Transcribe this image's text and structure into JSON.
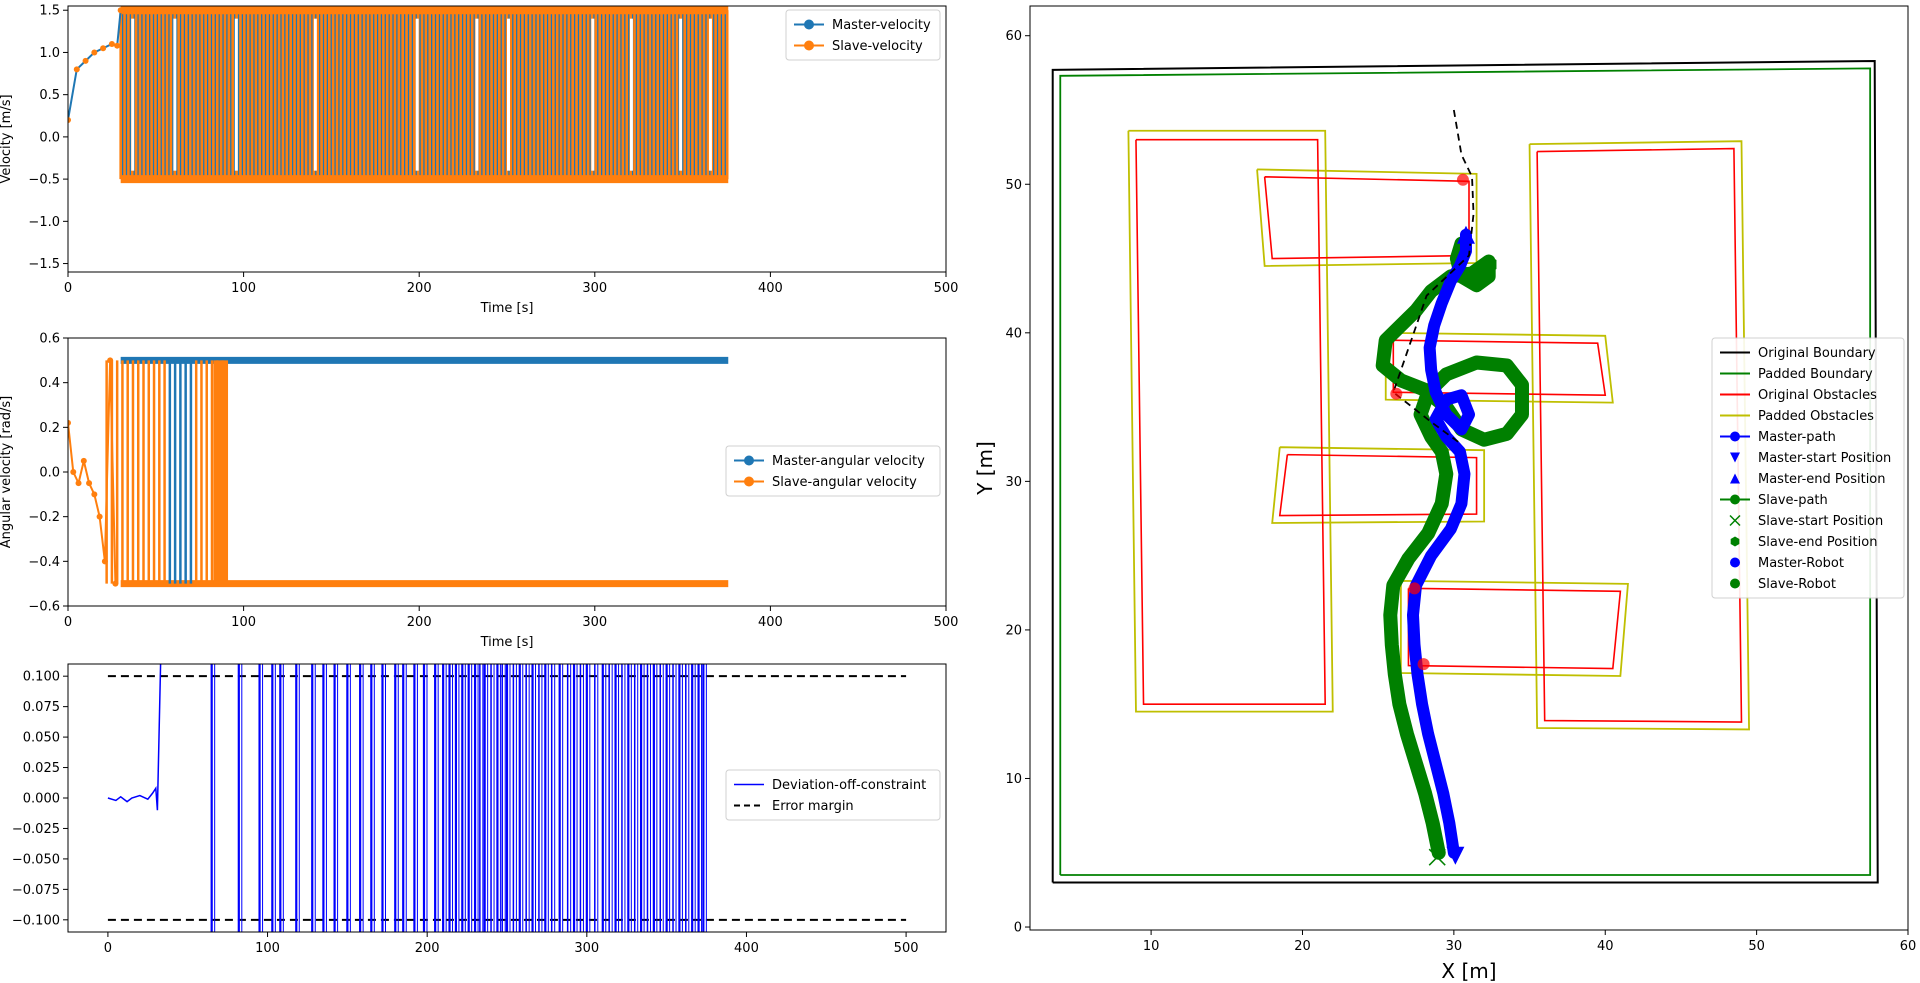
{
  "chart_data": [
    {
      "type": "line",
      "xlabel": "Time [s]",
      "ylabel": "Velocity [m/s]",
      "xlim": [
        0,
        500
      ],
      "ylim": [
        -1.6,
        1.55
      ],
      "xticks": [
        0,
        100,
        200,
        300,
        400,
        500
      ],
      "yticks": [
        -1.5,
        -1.0,
        -0.5,
        0.0,
        0.5,
        1.0,
        1.5
      ],
      "ytick_labels": [
        "−1.5",
        "−1.0",
        "−0.5",
        "0.0",
        "0.5",
        "1.0",
        "1.5"
      ],
      "legend_position": "upper right",
      "series": [
        {
          "name": "Master-velocity",
          "color": "#1f77b4",
          "marker": "o",
          "x": [
            0,
            5,
            10,
            15,
            20,
            25,
            28,
            30,
            30,
            60,
            60,
            100,
            100,
            150,
            150,
            200,
            200,
            225,
            225,
            250,
            250,
            300,
            300,
            330,
            330,
            376
          ],
          "y": [
            0.2,
            0.8,
            0.9,
            1.0,
            1.05,
            1.1,
            1.08,
            1.5,
            -0.5,
            -0.5,
            1.5,
            1.5,
            -0.5,
            -0.5,
            1.5,
            1.5,
            -0.5,
            -0.5,
            1.5,
            1.5,
            -0.5,
            -0.5,
            1.5,
            1.5,
            -0.5,
            -0.5
          ]
        },
        {
          "name": "Slave-velocity",
          "color": "#ff7f0e",
          "marker": "o",
          "x": [
            0,
            5,
            10,
            15,
            20,
            25,
            28,
            30,
            30,
            376,
            376
          ],
          "y": [
            0.3,
            0.85,
            0.9,
            1.0,
            1.05,
            1.1,
            1.08,
            1.5,
            -0.5,
            -0.5,
            1.5
          ]
        }
      ],
      "fill_band": {
        "x": [
          30,
          376
        ],
        "y": [
          -0.5,
          1.5
        ]
      }
    },
    {
      "type": "line",
      "xlabel": "Time [s]",
      "ylabel": "Angular velocity [rad/s]",
      "xlim": [
        0,
        500
      ],
      "ylim": [
        -0.6,
        0.6
      ],
      "xticks": [
        0,
        100,
        200,
        300,
        400,
        500
      ],
      "yticks": [
        -0.6,
        -0.4,
        -0.2,
        0.0,
        0.2,
        0.4,
        0.6
      ],
      "ytick_labels": [
        "−0.6",
        "−0.4",
        "−0.2",
        "0.0",
        "0.2",
        "0.4",
        "0.6"
      ],
      "legend_position": "center right",
      "series": [
        {
          "name": "Master-angular velocity",
          "color": "#1f77b4",
          "marker": "o",
          "x": [
            0,
            3,
            6,
            9,
            12,
            15,
            18,
            21,
            24,
            27,
            30,
            376
          ],
          "y": [
            0.2,
            0.05,
            -0.05,
            0.03,
            -0.1,
            0.02,
            -0.05,
            -0.2,
            -0.5,
            0.5,
            0.5,
            0.5
          ]
        },
        {
          "name": "Slave-angular velocity",
          "color": "#ff7f0e",
          "marker": "o",
          "x": [
            0,
            3,
            6,
            9,
            12,
            15,
            18,
            21,
            24,
            27,
            30,
            90,
            90,
            376
          ],
          "y": [
            0.22,
            0.0,
            -0.05,
            0.05,
            -0.05,
            -0.1,
            -0.2,
            -0.4,
            0.5,
            -0.5,
            0.5,
            0.5,
            -0.5,
            -0.5
          ]
        }
      ]
    },
    {
      "type": "line",
      "xlabel": "",
      "ylabel": "",
      "xlim": [
        -25,
        525
      ],
      "ylim": [
        -0.11,
        0.11
      ],
      "xticks": [
        0,
        100,
        200,
        300,
        400,
        500
      ],
      "yticks": [
        -0.1,
        -0.075,
        -0.05,
        -0.025,
        0.0,
        0.025,
        0.05,
        0.075,
        0.1
      ],
      "ytick_labels": [
        "−0.100",
        "−0.075",
        "−0.050",
        "−0.025",
        "0.000",
        "0.025",
        "0.050",
        "0.075",
        "0.100"
      ],
      "legend_position": "center right",
      "series": [
        {
          "name": "Deviation-off-constraint",
          "color": "#0000ff",
          "x": [
            0,
            5,
            8,
            12,
            15,
            20,
            25,
            28,
            30,
            31,
            32,
            33
          ],
          "y": [
            0.0,
            -0.002,
            0.001,
            -0.003,
            0.0,
            0.002,
            -0.001,
            0.004,
            0.008,
            -0.01,
            0.05,
            0.11
          ]
        },
        {
          "name": "Error margin",
          "color": "#000000",
          "dash": true,
          "x": [
            0,
            500
          ],
          "y_upper": 0.1,
          "y_lower": -0.1
        }
      ],
      "spikes_x": [
        65,
        82,
        95,
        103,
        108,
        118,
        128,
        135,
        142,
        150,
        158,
        165,
        172,
        180,
        185,
        192,
        198,
        205,
        210,
        214,
        218,
        222,
        226,
        230,
        233,
        236,
        240,
        244,
        247,
        250,
        254,
        258,
        262,
        266,
        270,
        274,
        278,
        283,
        288,
        292,
        296,
        300,
        305,
        310,
        314,
        318,
        322,
        326,
        330,
        334,
        338,
        342,
        346,
        350,
        354,
        358,
        362,
        366,
        370,
        373
      ]
    },
    {
      "type": "line",
      "xlabel": "X [m]",
      "ylabel": "Y [m]",
      "xlim": [
        2,
        60
      ],
      "ylim": [
        -0.2,
        62
      ],
      "xticks": [
        10,
        20,
        30,
        40,
        50,
        60
      ],
      "yticks": [
        0,
        10,
        20,
        30,
        40,
        50,
        60
      ],
      "legend_position": "center right",
      "legend": [
        {
          "name": "Original Boundary",
          "color": "#000000",
          "kind": "line"
        },
        {
          "name": "Padded Boundary",
          "color": "#008000",
          "kind": "line"
        },
        {
          "name": "Original Obstacles",
          "color": "#ff0000",
          "kind": "line"
        },
        {
          "name": "Padded Obstacles",
          "color": "#bfbf00",
          "kind": "line"
        },
        {
          "name": "Master-path",
          "color": "#0000ff",
          "kind": "line-marker",
          "marker": "o"
        },
        {
          "name": "Master-start Position",
          "color": "#0000ff",
          "kind": "marker",
          "marker": "v"
        },
        {
          "name": "Master-end Position",
          "color": "#0000ff",
          "kind": "marker",
          "marker": "^"
        },
        {
          "name": "Slave-path",
          "color": "#008000",
          "kind": "line-marker",
          "marker": "o"
        },
        {
          "name": "Slave-start Position",
          "color": "#008000",
          "kind": "marker",
          "marker": "x"
        },
        {
          "name": "Slave-end Position",
          "color": "#008000",
          "kind": "marker",
          "marker": "h"
        },
        {
          "name": "Master-Robot",
          "color": "#0000ff",
          "kind": "marker",
          "marker": "o"
        },
        {
          "name": "Slave-Robot",
          "color": "#008000",
          "kind": "marker",
          "marker": "o"
        }
      ],
      "boundary_original": [
        [
          3.5,
          3
        ],
        [
          58,
          3
        ],
        [
          57.8,
          58.3
        ],
        [
          3.5,
          57.7
        ],
        [
          3.5,
          3
        ]
      ],
      "boundary_padded": [
        [
          4,
          3.5
        ],
        [
          57.5,
          3.5
        ],
        [
          57.5,
          57.8
        ],
        [
          4,
          57.3
        ],
        [
          4,
          3.5
        ]
      ],
      "obstacles_original": [
        [
          [
            9,
            53
          ],
          [
            21,
            53
          ],
          [
            21.5,
            15
          ],
          [
            9.5,
            15
          ],
          [
            9,
            53
          ]
        ],
        [
          [
            35.5,
            52.2
          ],
          [
            48.5,
            52.4
          ],
          [
            49,
            13.8
          ],
          [
            36,
            13.9
          ],
          [
            35.5,
            52.2
          ]
        ],
        [
          [
            17.5,
            50.5
          ],
          [
            31,
            50.2
          ],
          [
            31,
            45.2
          ],
          [
            18,
            45
          ],
          [
            17.5,
            50.5
          ]
        ],
        [
          [
            26,
            39.5
          ],
          [
            39.5,
            39.3
          ],
          [
            40,
            35.8
          ],
          [
            26,
            36
          ],
          [
            26,
            39.5
          ]
        ],
        [
          [
            19,
            31.8
          ],
          [
            31.5,
            31.6
          ],
          [
            31.5,
            27.8
          ],
          [
            18.5,
            27.7
          ],
          [
            19,
            31.8
          ]
        ],
        [
          [
            27,
            22.8
          ],
          [
            41,
            22.6
          ],
          [
            40.5,
            17.4
          ],
          [
            27,
            17.6
          ],
          [
            27,
            22.8
          ]
        ]
      ],
      "obstacles_padded": [
        [
          [
            8.5,
            53.6
          ],
          [
            21.5,
            53.6
          ],
          [
            22,
            14.5
          ],
          [
            9,
            14.5
          ],
          [
            8.5,
            53.6
          ]
        ],
        [
          [
            35,
            52.7
          ],
          [
            49,
            52.9
          ],
          [
            49.5,
            13.3
          ],
          [
            35.5,
            13.4
          ],
          [
            35,
            52.7
          ]
        ],
        [
          [
            17,
            51
          ],
          [
            31.5,
            50.7
          ],
          [
            31.5,
            44.7
          ],
          [
            17.5,
            44.5
          ],
          [
            17,
            51
          ]
        ],
        [
          [
            25.5,
            40
          ],
          [
            40,
            39.8
          ],
          [
            40.5,
            35.3
          ],
          [
            25.5,
            35.5
          ],
          [
            25.5,
            40
          ]
        ],
        [
          [
            18.5,
            32.3
          ],
          [
            32,
            32.1
          ],
          [
            32,
            27.3
          ],
          [
            18,
            27.2
          ],
          [
            18.5,
            32.3
          ]
        ],
        [
          [
            26.5,
            23.3
          ],
          [
            41.5,
            23.1
          ],
          [
            41,
            16.9
          ],
          [
            26.5,
            17.1
          ],
          [
            26.5,
            23.3
          ]
        ]
      ],
      "master_path": [
        [
          30,
          5
        ],
        [
          29.7,
          7
        ],
        [
          29.3,
          9
        ],
        [
          28.8,
          11
        ],
        [
          28.3,
          13
        ],
        [
          27.9,
          15
        ],
        [
          27.6,
          17
        ],
        [
          27.4,
          19
        ],
        [
          27.3,
          21
        ],
        [
          27.5,
          23
        ],
        [
          28.5,
          25
        ],
        [
          29.8,
          26.8
        ],
        [
          30.5,
          28.5
        ],
        [
          30.7,
          30.5
        ],
        [
          30.4,
          32
        ],
        [
          29.5,
          33
        ],
        [
          28.8,
          34.2
        ],
        [
          29.5,
          35.5
        ],
        [
          30.5,
          35.8
        ],
        [
          31,
          34.5
        ],
        [
          30.5,
          33.5
        ],
        [
          29.5,
          34.5
        ],
        [
          28.8,
          36
        ],
        [
          28.5,
          37.5
        ],
        [
          28.4,
          39
        ],
        [
          28.7,
          40.5
        ],
        [
          29.2,
          42
        ],
        [
          29.8,
          43.5
        ],
        [
          30.4,
          44.5
        ],
        [
          30.8,
          45.5
        ],
        [
          30.8,
          46.6
        ]
      ],
      "slave_path": [
        [
          29,
          5
        ],
        [
          28.6,
          7
        ],
        [
          28.1,
          9
        ],
        [
          27.5,
          11
        ],
        [
          26.9,
          13
        ],
        [
          26.4,
          15
        ],
        [
          26.1,
          17
        ],
        [
          25.9,
          19
        ],
        [
          25.8,
          21
        ],
        [
          26,
          23
        ],
        [
          27,
          24.8
        ],
        [
          28.3,
          26.5
        ],
        [
          29.2,
          28.5
        ],
        [
          29.5,
          30.5
        ],
        [
          29.2,
          32
        ],
        [
          28.5,
          33
        ],
        [
          27.8,
          34.5
        ],
        [
          28.3,
          36
        ],
        [
          29.5,
          37.2
        ],
        [
          31.5,
          38
        ],
        [
          33.5,
          37.8
        ],
        [
          34.5,
          36.5
        ],
        [
          34.5,
          34.5
        ],
        [
          33.5,
          33.2
        ],
        [
          32,
          32.8
        ],
        [
          30.5,
          33.5
        ],
        [
          29.5,
          35
        ],
        [
          28,
          36.2
        ],
        [
          26.5,
          36.8
        ],
        [
          25.3,
          37.8
        ],
        [
          25.5,
          39.5
        ],
        [
          26.5,
          40.5
        ],
        [
          27.5,
          41.5
        ],
        [
          28.5,
          42.8
        ],
        [
          29.8,
          43.8
        ],
        [
          31.2,
          44
        ],
        [
          32.3,
          44.8
        ],
        [
          32.3,
          43.8
        ],
        [
          31.5,
          43.2
        ],
        [
          30.5,
          43.8
        ],
        [
          30.2,
          45
        ],
        [
          30.5,
          46
        ]
      ],
      "dashed_path": [
        [
          30,
          55
        ],
        [
          30.5,
          52
        ],
        [
          31.2,
          50.5
        ],
        [
          31.3,
          48
        ],
        [
          31,
          45.2
        ],
        [
          28.2,
          42.5
        ],
        [
          26,
          36
        ],
        [
          28.5,
          34
        ],
        [
          30.5,
          32.5
        ]
      ],
      "red_points": [
        [
          30.6,
          50.3
        ],
        [
          26.2,
          35.9
        ],
        [
          27.4,
          22.8
        ],
        [
          28,
          17.7
        ]
      ],
      "master_start": [
        30.1,
        4.8
      ],
      "master_end": [
        30.8,
        46.6
      ],
      "slave_start": [
        28.9,
        4.7
      ],
      "slave_end": [
        32.3,
        44.6
      ]
    }
  ]
}
